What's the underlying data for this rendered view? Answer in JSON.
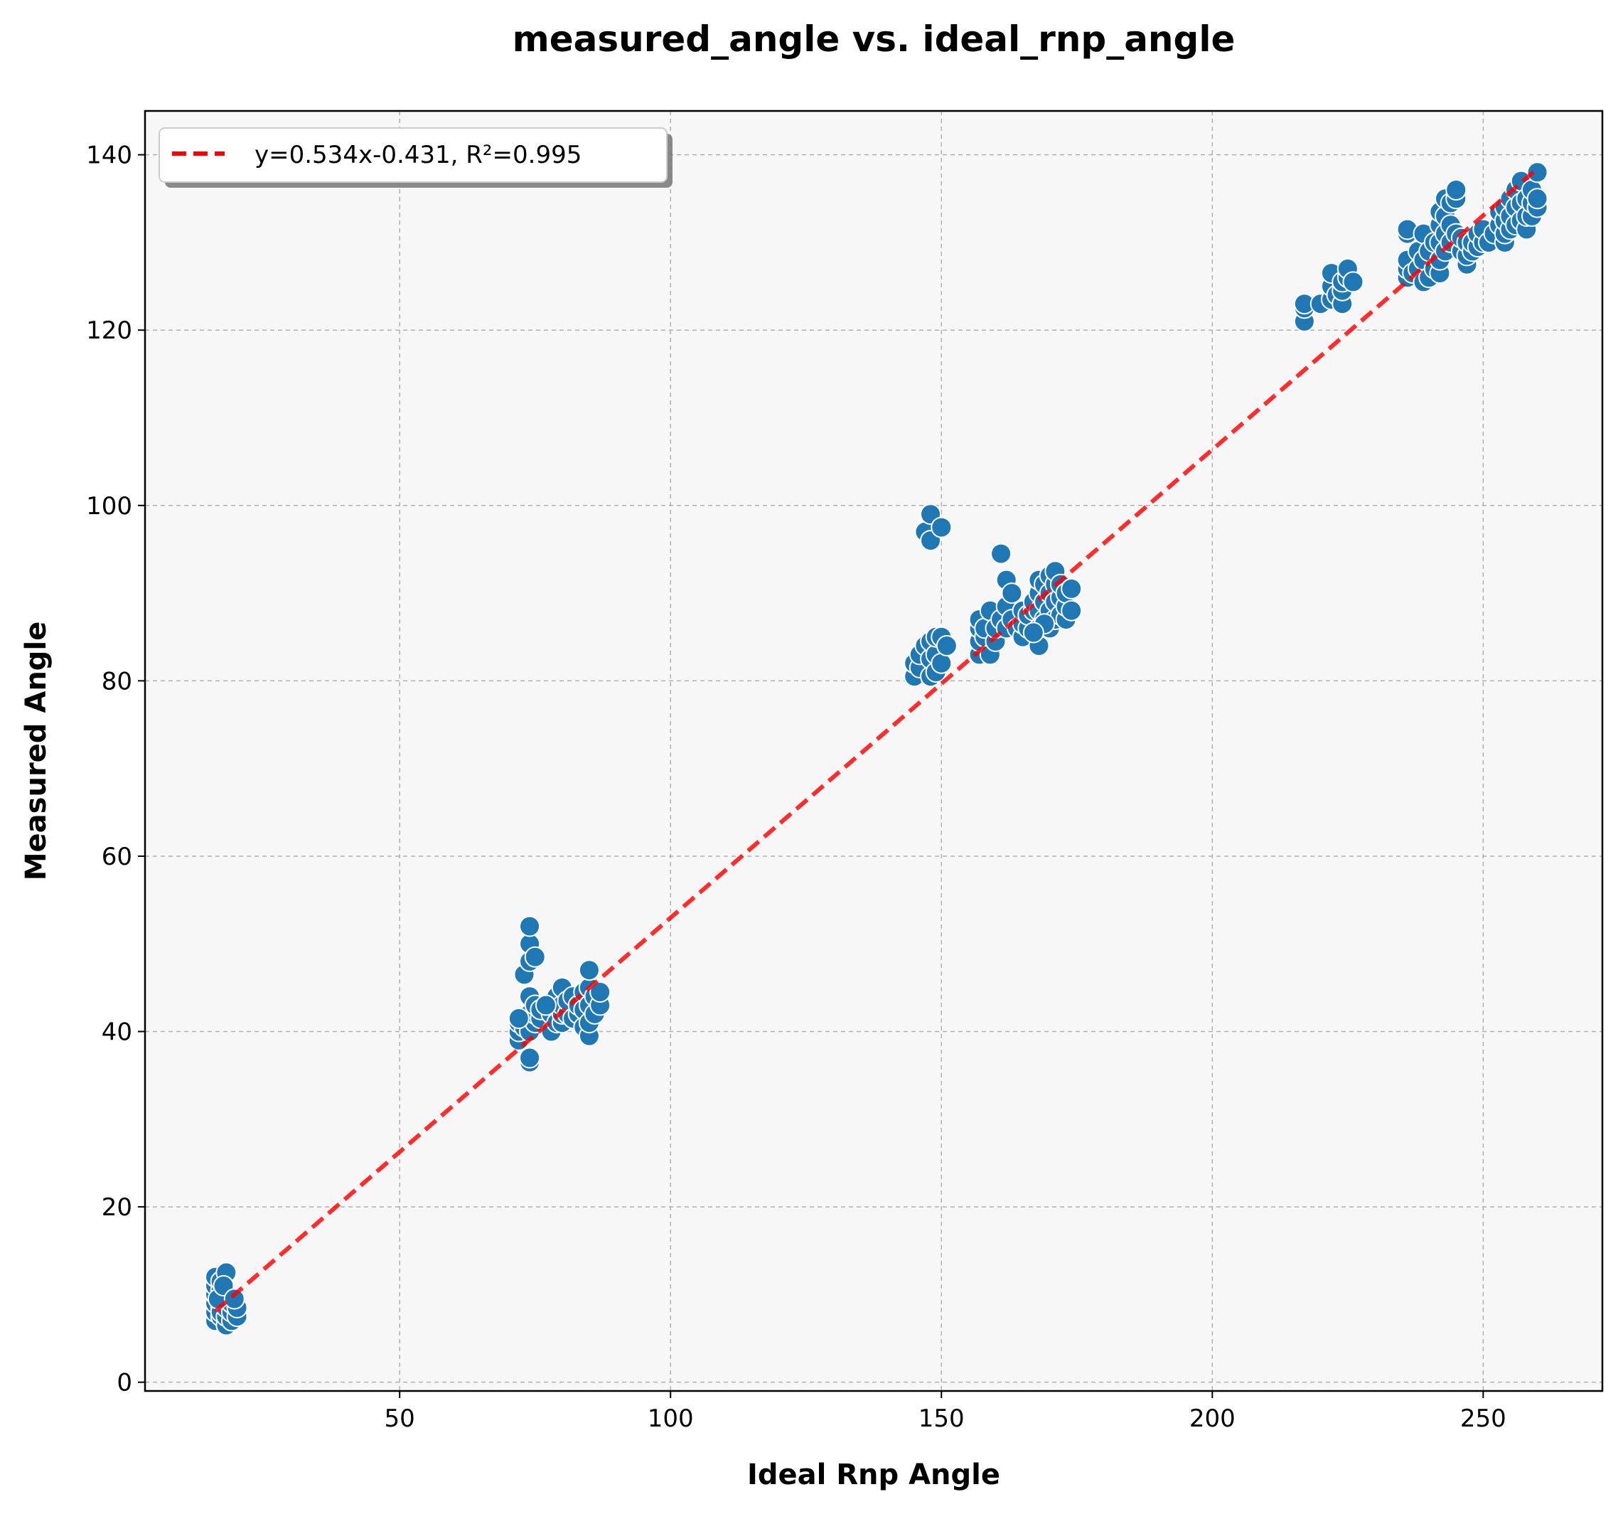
{
  "chart_data": {
    "type": "scatter",
    "title": "measured_angle vs. ideal_rnp_angle",
    "xlabel": "Ideal Rnp Angle",
    "ylabel": "Measured Angle",
    "xlim": [
      3,
      272
    ],
    "ylim": [
      -1,
      145
    ],
    "xticks": [
      50,
      100,
      150,
      200,
      250
    ],
    "yticks": [
      0,
      20,
      40,
      60,
      80,
      100,
      120,
      140
    ],
    "grid": true,
    "legend_position": "top-left",
    "colors": {
      "points": "#1f77b4",
      "fit": "#ff0000",
      "plot_bg": "#f7f7f7"
    },
    "fit_line": {
      "label": "y=0.534x-0.431, R²=0.995",
      "slope": 0.534,
      "intercept": -0.431,
      "x_range": [
        16,
        260
      ]
    },
    "series": [
      {
        "points": [
          [
            16,
            7
          ],
          [
            16,
            8
          ],
          [
            16,
            9
          ],
          [
            16,
            10
          ],
          [
            16,
            11
          ],
          [
            16,
            12
          ],
          [
            17,
            7.5
          ],
          [
            17,
            8.5
          ],
          [
            17,
            9.5
          ],
          [
            17,
            10.5
          ],
          [
            17,
            11.5
          ],
          [
            17,
            8
          ],
          [
            18,
            6.5
          ],
          [
            18,
            7.5
          ],
          [
            18,
            8.5
          ],
          [
            18,
            9.5
          ],
          [
            18,
            10
          ],
          [
            18,
            12.5
          ],
          [
            19,
            7
          ],
          [
            19,
            8
          ],
          [
            19,
            9
          ],
          [
            20,
            7.5
          ],
          [
            20,
            8.5
          ],
          [
            16.5,
            9.5
          ],
          [
            17.5,
            11
          ],
          [
            19.5,
            9.5
          ],
          [
            72,
            39
          ],
          [
            72,
            40
          ],
          [
            72,
            41
          ],
          [
            73,
            40.5
          ],
          [
            73,
            41.5
          ],
          [
            73,
            46.5
          ],
          [
            74,
            36.5
          ],
          [
            74,
            37
          ],
          [
            74,
            40
          ],
          [
            74,
            42
          ],
          [
            74,
            44
          ],
          [
            74,
            48
          ],
          [
            74,
            50
          ],
          [
            74,
            52
          ],
          [
            75,
            41
          ],
          [
            75,
            42
          ],
          [
            75,
            43
          ],
          [
            75,
            48.5
          ],
          [
            76,
            41.5
          ],
          [
            76,
            42.5
          ],
          [
            78,
            40
          ],
          [
            78,
            42
          ],
          [
            78,
            43
          ],
          [
            79,
            41
          ],
          [
            79,
            44
          ],
          [
            80,
            41
          ],
          [
            80,
            42
          ],
          [
            80,
            43
          ],
          [
            80,
            45
          ],
          [
            81,
            42
          ],
          [
            81,
            43.5
          ],
          [
            82,
            41.5
          ],
          [
            82,
            44
          ],
          [
            83,
            42
          ],
          [
            83,
            43
          ],
          [
            84,
            40.5
          ],
          [
            84,
            42.5
          ],
          [
            84,
            44.5
          ],
          [
            85,
            39.5
          ],
          [
            85,
            41
          ],
          [
            85,
            43
          ],
          [
            85,
            45
          ],
          [
            85,
            47
          ],
          [
            86,
            42
          ],
          [
            86,
            44
          ],
          [
            87,
            43
          ],
          [
            87,
            44.5
          ],
          [
            72,
            41.5
          ],
          [
            77,
            43
          ],
          [
            145,
            80.5
          ],
          [
            145,
            82
          ],
          [
            146,
            81.5
          ],
          [
            146,
            83
          ],
          [
            147,
            84
          ],
          [
            147,
            97
          ],
          [
            148,
            80.5
          ],
          [
            148,
            82.5
          ],
          [
            148,
            84.5
          ],
          [
            148,
            96
          ],
          [
            148,
            99
          ],
          [
            149,
            81
          ],
          [
            149,
            83
          ],
          [
            149,
            85
          ],
          [
            150,
            82
          ],
          [
            150,
            85
          ],
          [
            150,
            97.5
          ],
          [
            151,
            84
          ],
          [
            157,
            83
          ],
          [
            157,
            84.5
          ],
          [
            157,
            86
          ],
          [
            157,
            87
          ],
          [
            158,
            85
          ],
          [
            158,
            86
          ],
          [
            159,
            83
          ],
          [
            159,
            88
          ],
          [
            160,
            84.5
          ],
          [
            160,
            86
          ],
          [
            161,
            87
          ],
          [
            161,
            94.5
          ],
          [
            162,
            86
          ],
          [
            162,
            88.5
          ],
          [
            162,
            91.5
          ],
          [
            163,
            87
          ],
          [
            163,
            90
          ],
          [
            164,
            86
          ],
          [
            165,
            85
          ],
          [
            165,
            86.5
          ],
          [
            165,
            88
          ],
          [
            166,
            86
          ],
          [
            166,
            87.5
          ],
          [
            167,
            88
          ],
          [
            167,
            89
          ],
          [
            168,
            84
          ],
          [
            168,
            86
          ],
          [
            168,
            88
          ],
          [
            168,
            90
          ],
          [
            168,
            91.5
          ],
          [
            169,
            87
          ],
          [
            169,
            89
          ],
          [
            169,
            91
          ],
          [
            170,
            86
          ],
          [
            170,
            88
          ],
          [
            170,
            90
          ],
          [
            170,
            92
          ],
          [
            171,
            87
          ],
          [
            171,
            89
          ],
          [
            171,
            91
          ],
          [
            171,
            92.5
          ],
          [
            172,
            87.5
          ],
          [
            172,
            89.5
          ],
          [
            172,
            91
          ],
          [
            173,
            87
          ],
          [
            173,
            88.5
          ],
          [
            173,
            90
          ],
          [
            174,
            88
          ],
          [
            174,
            90.5
          ],
          [
            169,
            86.5
          ],
          [
            167,
            85.5
          ],
          [
            217,
            121
          ],
          [
            217,
            122.5
          ],
          [
            217,
            123
          ],
          [
            220,
            123
          ],
          [
            222,
            123.5
          ],
          [
            222,
            125
          ],
          [
            222,
            126.5
          ],
          [
            223,
            124
          ],
          [
            224,
            123
          ],
          [
            224,
            124.5
          ],
          [
            224,
            125.5
          ],
          [
            225,
            126
          ],
          [
            225,
            127
          ],
          [
            226,
            125.5
          ],
          [
            236,
            126
          ],
          [
            236,
            127
          ],
          [
            236,
            128
          ],
          [
            236,
            131
          ],
          [
            236,
            131.5
          ],
          [
            237,
            126.5
          ],
          [
            238,
            127
          ],
          [
            238,
            129
          ],
          [
            239,
            125.5
          ],
          [
            239,
            128
          ],
          [
            239,
            131
          ],
          [
            240,
            126
          ],
          [
            240,
            129
          ],
          [
            241,
            127
          ],
          [
            241,
            130
          ],
          [
            242,
            126.5
          ],
          [
            242,
            128
          ],
          [
            242,
            130
          ],
          [
            242,
            132
          ],
          [
            242,
            133.5
          ],
          [
            243,
            129
          ],
          [
            243,
            131
          ],
          [
            243,
            133
          ],
          [
            243,
            135
          ],
          [
            244,
            130
          ],
          [
            244,
            132
          ],
          [
            244,
            134.5
          ],
          [
            245,
            131
          ],
          [
            245,
            135
          ],
          [
            245,
            136
          ],
          [
            246,
            129
          ],
          [
            246,
            130.5
          ],
          [
            247,
            127.5
          ],
          [
            247,
            128.5
          ],
          [
            247,
            130
          ],
          [
            248,
            129
          ],
          [
            248,
            130
          ],
          [
            249,
            129.5
          ],
          [
            249,
            131
          ],
          [
            250,
            130
          ],
          [
            250,
            131.5
          ],
          [
            251,
            130
          ],
          [
            252,
            131
          ],
          [
            253,
            132
          ],
          [
            253,
            133.5
          ],
          [
            254,
            130
          ],
          [
            254,
            131
          ],
          [
            254,
            132.5
          ],
          [
            254,
            134
          ],
          [
            255,
            131.5
          ],
          [
            255,
            133
          ],
          [
            255,
            135
          ],
          [
            256,
            132
          ],
          [
            256,
            134
          ],
          [
            256,
            136
          ],
          [
            257,
            132.5
          ],
          [
            257,
            134.5
          ],
          [
            257,
            137
          ],
          [
            258,
            131.5
          ],
          [
            258,
            133
          ],
          [
            258,
            135
          ],
          [
            259,
            133
          ],
          [
            259,
            134.5
          ],
          [
            259,
            136
          ],
          [
            260,
            134
          ],
          [
            260,
            135
          ],
          [
            260,
            138
          ]
        ]
      }
    ]
  }
}
